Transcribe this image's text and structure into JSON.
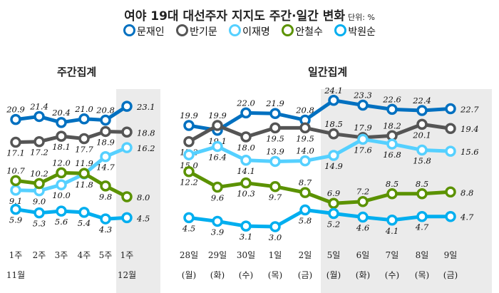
{
  "title": "여야 19대 대선주자 지지도 주간·일간 변화",
  "unit": "단위: %",
  "legend": [
    "문재인",
    "반기문",
    "이재명",
    "안철수",
    "박원순"
  ],
  "colors": {
    "문재인": "#0070C0",
    "반기문": "#555555",
    "이재명": "#55D0FF",
    "안철수": "#5B9200",
    "박원순": "#00AEEF",
    "shade": "#EBEBEB"
  },
  "chart_data": [
    {
      "type": "line",
      "title": "주간집계",
      "categories": [
        "1주",
        "2주",
        "3주",
        "4주",
        "5주",
        "1주"
      ],
      "month_labels": [
        "11월",
        "",
        "",
        "",
        "",
        "12월"
      ],
      "highlight_last": 1,
      "series": [
        {
          "name": "문재인",
          "values": [
            20.9,
            21.4,
            20.4,
            21.0,
            20.8,
            23.1
          ]
        },
        {
          "name": "반기문",
          "values": [
            17.1,
            17.2,
            18.1,
            17.7,
            18.9,
            18.8
          ]
        },
        {
          "name": "이재명",
          "values": [
            9.1,
            9.0,
            10.0,
            11.8,
            14.7,
            16.2
          ]
        },
        {
          "name": "안철수",
          "values": [
            10.7,
            10.2,
            12.0,
            11.9,
            9.8,
            8.0
          ]
        },
        {
          "name": "박원순",
          "values": [
            5.9,
            5.3,
            5.6,
            5.4,
            4.3,
            4.5
          ]
        }
      ]
    },
    {
      "type": "line",
      "title": "일간집계",
      "categories": [
        "28일",
        "29일",
        "30일",
        "1일",
        "2일",
        "5일",
        "6일",
        "7일",
        "8일",
        "9일"
      ],
      "weekday_labels": [
        "(월)",
        "(화)",
        "(수)",
        "(목)",
        "(금)",
        "(월)",
        "(화)",
        "(수)",
        "(목)",
        "(금)"
      ],
      "highlight_last": 5,
      "series": [
        {
          "name": "문재인",
          "values": [
            19.9,
            19.1,
            22.0,
            21.9,
            20.8,
            24.1,
            23.3,
            22.6,
            22.4,
            22.7
          ]
        },
        {
          "name": "반기문",
          "values": [
            17.2,
            19.9,
            18.0,
            19.5,
            19.5,
            18.5,
            17.9,
            18.2,
            20.1,
            19.4
          ]
        },
        {
          "name": "이재명",
          "values": [
            15.0,
            16.4,
            14.1,
            13.9,
            14.0,
            14.9,
            17.6,
            16.8,
            15.8,
            15.6
          ]
        },
        {
          "name": "안철수",
          "values": [
            12.2,
            9.6,
            10.3,
            9.7,
            8.7,
            6.9,
            7.2,
            8.5,
            8.5,
            8.8
          ]
        },
        {
          "name": "박원순",
          "values": [
            4.5,
            3.9,
            3.1,
            3.0,
            5.8,
            5.2,
            4.6,
            4.1,
            4.7,
            4.7
          ]
        }
      ]
    }
  ]
}
